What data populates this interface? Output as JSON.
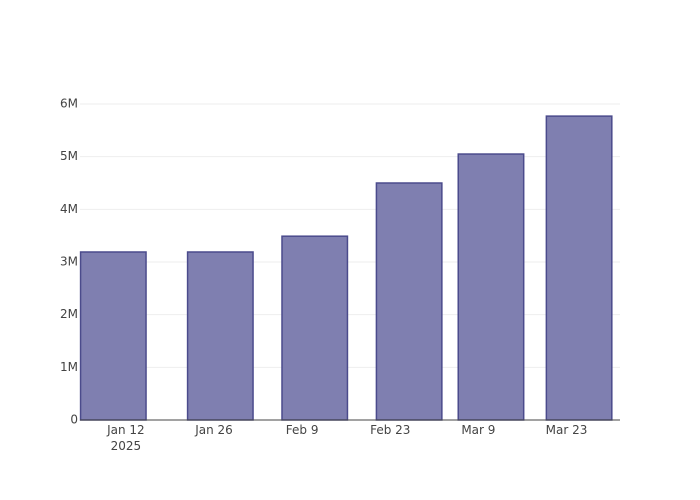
{
  "chart_data": {
    "type": "bar",
    "x": [
      "2025-01-10",
      "2025-01-27",
      "2025-02-11",
      "2025-02-26",
      "2025-03-11",
      "2025-03-25"
    ],
    "values": [
      3190000,
      3190000,
      3490000,
      4500000,
      5050000,
      5770000
    ],
    "color": "#7f7fb0",
    "edge_color": "#4b4b8c",
    "xlim": [
      "2025-01-04T17:00",
      "2025-03-31T12:00"
    ],
    "xticks": [
      {
        "value": "2025-01-12",
        "label": "Jan 12\n2025"
      },
      {
        "value": "2025-01-26",
        "label": "Jan 26"
      },
      {
        "value": "2025-02-09",
        "label": "Feb 9"
      },
      {
        "value": "2025-02-23",
        "label": "Feb 23"
      },
      {
        "value": "2025-03-09",
        "label": "Mar 9"
      },
      {
        "value": "2025-03-23",
        "label": "Mar 23"
      }
    ],
    "ylim": [
      0,
      6076000
    ],
    "yticks": [
      0,
      {
        "value": 1000000,
        "label": "1M"
      },
      {
        "value": 2000000,
        "label": "2M"
      },
      {
        "value": 3000000,
        "label": "3M"
      },
      {
        "value": 4000000,
        "label": "4M"
      },
      {
        "value": 5000000,
        "label": "5M"
      },
      {
        "value": 6000000,
        "label": "6M"
      }
    ],
    "grid": true
  }
}
